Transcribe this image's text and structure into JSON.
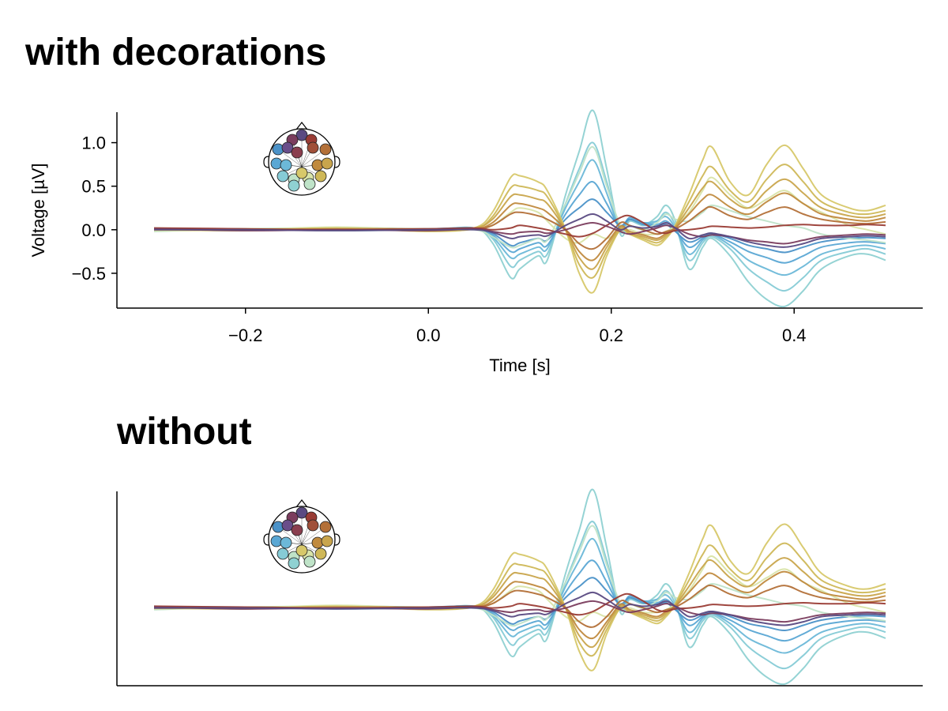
{
  "chart_data": [
    {
      "type": "line",
      "title": "with decorations",
      "xlabel": "Time [s]",
      "ylabel": "Voltage [µV]",
      "xlim": [
        -0.3,
        0.5
      ],
      "ylim": [
        -0.9,
        1.35
      ],
      "xticks": [
        -0.2,
        0.0,
        0.2,
        0.4
      ],
      "xtick_labels": [
        "−0.2",
        "0.0",
        "0.2",
        "0.4"
      ],
      "yticks": [
        -0.5,
        0.0,
        0.5,
        1.0
      ],
      "ytick_labels": [
        "−0.5",
        "0.0",
        "0.5",
        "1.0"
      ],
      "show_axis_decorations": true,
      "inset": "topographic head map of electrode positions colored by channel",
      "x_sample_times": [
        -0.3,
        -0.2,
        -0.1,
        0.0,
        0.05,
        0.07,
        0.09,
        0.1,
        0.12,
        0.13,
        0.15,
        0.165,
        0.18,
        0.195,
        0.21,
        0.22,
        0.235,
        0.25,
        0.26,
        0.27,
        0.285,
        0.3,
        0.31,
        0.33,
        0.35,
        0.37,
        0.39,
        0.41,
        0.43,
        0.46,
        0.48,
        0.5
      ],
      "series": [
        {
          "color": "#8fd1d2",
          "values": [
            0.02,
            0.0,
            0.01,
            0.0,
            0.02,
            -0.15,
            -0.55,
            -0.45,
            -0.3,
            -0.35,
            0.4,
            0.9,
            1.37,
            0.7,
            -0.05,
            0.1,
            0.05,
            0.15,
            0.28,
            0.1,
            -0.45,
            -0.2,
            -0.1,
            -0.3,
            -0.6,
            -0.8,
            -0.88,
            -0.7,
            -0.45,
            -0.3,
            -0.28,
            -0.35
          ]
        },
        {
          "color": "#86cbd6",
          "values": [
            0.0,
            0.01,
            -0.01,
            0.0,
            0.01,
            -0.1,
            -0.42,
            -0.35,
            -0.25,
            -0.28,
            0.3,
            0.7,
            1.0,
            0.55,
            -0.02,
            0.1,
            0.05,
            0.1,
            0.2,
            0.05,
            -0.35,
            -0.15,
            -0.08,
            -0.22,
            -0.45,
            -0.6,
            -0.7,
            -0.55,
            -0.35,
            -0.25,
            -0.22,
            -0.28
          ]
        },
        {
          "color": "#6cb8d8",
          "values": [
            0.01,
            -0.01,
            0.02,
            0.01,
            0.02,
            -0.08,
            -0.32,
            -0.28,
            -0.2,
            -0.22,
            0.25,
            0.55,
            0.8,
            0.42,
            0.0,
            0.12,
            0.08,
            0.1,
            0.15,
            0.02,
            -0.28,
            -0.12,
            -0.06,
            -0.18,
            -0.35,
            -0.45,
            -0.52,
            -0.42,
            -0.28,
            -0.2,
            -0.18,
            -0.22
          ]
        },
        {
          "color": "#5aa7d4",
          "values": [
            0.0,
            0.0,
            0.0,
            0.0,
            0.01,
            -0.06,
            -0.25,
            -0.22,
            -0.15,
            -0.18,
            0.18,
            0.4,
            0.55,
            0.3,
            0.02,
            0.14,
            0.08,
            0.06,
            0.1,
            0.0,
            -0.2,
            -0.1,
            -0.05,
            -0.14,
            -0.25,
            -0.32,
            -0.38,
            -0.3,
            -0.2,
            -0.15,
            -0.14,
            -0.16
          ]
        },
        {
          "color": "#4b92c8",
          "values": [
            0.01,
            0.01,
            0.0,
            0.01,
            0.02,
            -0.04,
            -0.18,
            -0.15,
            -0.1,
            -0.12,
            0.12,
            0.25,
            0.35,
            0.2,
            0.05,
            0.12,
            0.06,
            0.04,
            0.06,
            -0.02,
            -0.14,
            -0.08,
            -0.04,
            -0.1,
            -0.18,
            -0.22,
            -0.26,
            -0.2,
            -0.14,
            -0.1,
            -0.09,
            -0.1
          ]
        },
        {
          "color": "#bfe3c8",
          "values": [
            -0.02,
            0.01,
            0.02,
            -0.01,
            0.0,
            -0.08,
            -0.2,
            -0.18,
            -0.1,
            -0.12,
            0.3,
            0.65,
            0.95,
            0.5,
            0.05,
            0.05,
            0.0,
            0.08,
            0.18,
            0.12,
            0.1,
            0.2,
            0.28,
            0.22,
            0.15,
            0.1,
            0.05,
            0.02,
            -0.05,
            -0.1,
            -0.12,
            -0.15
          ]
        },
        {
          "color": "#d9e4a8",
          "values": [
            -0.01,
            0.0,
            0.03,
            0.0,
            0.01,
            0.05,
            0.2,
            0.25,
            0.2,
            0.1,
            -0.1,
            -0.15,
            -0.05,
            -0.1,
            -0.02,
            0.0,
            -0.05,
            -0.05,
            -0.02,
            0.05,
            0.2,
            0.45,
            0.6,
            0.4,
            0.25,
            0.35,
            0.45,
            0.3,
            0.2,
            0.05,
            0.0,
            -0.05
          ]
        },
        {
          "color": "#d7c86a",
          "values": [
            0.0,
            -0.01,
            0.02,
            -0.02,
            0.02,
            0.2,
            0.6,
            0.62,
            0.55,
            0.45,
            0.0,
            -0.5,
            -0.72,
            -0.3,
            0.0,
            -0.05,
            -0.12,
            -0.18,
            -0.1,
            0.05,
            0.4,
            0.8,
            0.95,
            0.55,
            0.4,
            0.75,
            0.97,
            0.7,
            0.4,
            0.25,
            0.22,
            0.28
          ]
        },
        {
          "color": "#cfb858",
          "values": [
            0.01,
            0.0,
            0.01,
            -0.01,
            0.01,
            0.15,
            0.48,
            0.5,
            0.45,
            0.38,
            0.0,
            -0.4,
            -0.55,
            -0.25,
            0.0,
            -0.05,
            -0.1,
            -0.15,
            -0.08,
            0.04,
            0.32,
            0.62,
            0.72,
            0.45,
            0.32,
            0.58,
            0.75,
            0.55,
            0.32,
            0.2,
            0.18,
            0.22
          ]
        },
        {
          "color": "#c9a54c",
          "values": [
            0.0,
            0.01,
            0.0,
            0.0,
            0.02,
            0.12,
            0.38,
            0.4,
            0.35,
            0.3,
            0.0,
            -0.32,
            -0.45,
            -0.2,
            0.02,
            -0.04,
            -0.08,
            -0.12,
            -0.06,
            0.03,
            0.25,
            0.48,
            0.55,
            0.35,
            0.25,
            0.45,
            0.58,
            0.42,
            0.25,
            0.16,
            0.14,
            0.18
          ]
        },
        {
          "color": "#c08a3e",
          "values": [
            0.01,
            0.0,
            0.01,
            0.01,
            0.01,
            0.08,
            0.28,
            0.3,
            0.25,
            0.2,
            0.0,
            -0.25,
            -0.35,
            -0.16,
            0.04,
            -0.02,
            -0.06,
            -0.1,
            -0.04,
            0.02,
            0.18,
            0.35,
            0.4,
            0.26,
            0.18,
            0.32,
            0.42,
            0.3,
            0.18,
            0.12,
            0.1,
            0.14
          ]
        },
        {
          "color": "#b37038",
          "values": [
            0.0,
            0.0,
            0.0,
            0.0,
            0.01,
            0.05,
            0.18,
            0.2,
            0.16,
            0.12,
            0.0,
            -0.16,
            -0.22,
            -0.1,
            0.08,
            0.05,
            0.0,
            -0.05,
            -0.02,
            0.01,
            0.1,
            0.22,
            0.26,
            0.16,
            0.12,
            0.2,
            0.26,
            0.18,
            0.12,
            0.08,
            0.07,
            0.09
          ]
        },
        {
          "color": "#9a3c35",
          "values": [
            0.02,
            0.01,
            0.0,
            0.01,
            0.02,
            0.0,
            0.02,
            0.05,
            0.02,
            0.0,
            -0.05,
            -0.08,
            -0.04,
            0.05,
            0.14,
            0.16,
            0.08,
            -0.02,
            -0.04,
            -0.01,
            0.0,
            0.02,
            0.04,
            0.03,
            0.02,
            0.03,
            0.05,
            0.06,
            0.05,
            0.05,
            0.06,
            0.05
          ]
        },
        {
          "color": "#7b3d5e",
          "values": [
            0.01,
            -0.01,
            0.0,
            -0.01,
            0.01,
            -0.02,
            -0.05,
            -0.03,
            -0.02,
            -0.04,
            0.0,
            0.05,
            0.08,
            0.04,
            -0.02,
            -0.05,
            -0.02,
            0.02,
            0.05,
            0.02,
            -0.05,
            -0.08,
            -0.06,
            -0.08,
            -0.12,
            -0.14,
            -0.16,
            -0.12,
            -0.08,
            -0.06,
            -0.05,
            -0.06
          ]
        },
        {
          "color": "#5a4a82",
          "values": [
            0.0,
            0.0,
            -0.01,
            0.0,
            0.0,
            -0.03,
            -0.1,
            -0.08,
            -0.06,
            -0.07,
            0.05,
            0.12,
            0.18,
            0.1,
            0.0,
            0.04,
            0.02,
            0.04,
            0.08,
            0.02,
            -0.1,
            -0.06,
            -0.04,
            -0.08,
            -0.14,
            -0.18,
            -0.2,
            -0.16,
            -0.1,
            -0.08,
            -0.07,
            -0.08
          ]
        }
      ]
    },
    {
      "type": "line",
      "title": "without",
      "xlabel": "",
      "ylabel": "",
      "xlim": [
        -0.3,
        0.5
      ],
      "ylim": [
        -0.9,
        1.35
      ],
      "show_axis_decorations": false,
      "inset": "topographic head map of electrode positions colored by channel",
      "same_data_as_panel": 0
    }
  ],
  "topo_electrodes": [
    {
      "color": "#5a4a82"
    },
    {
      "color": "#7b3d5e"
    },
    {
      "color": "#9a3c35"
    },
    {
      "color": "#4b92c8"
    },
    {
      "color": "#6a4e8a"
    },
    {
      "color": "#8a3e4e"
    },
    {
      "color": "#a0503a"
    },
    {
      "color": "#b37038"
    },
    {
      "color": "#5aa7d4"
    },
    {
      "color": "#6cb8d8"
    },
    {
      "color": "#c08a3e"
    },
    {
      "color": "#c9a54c"
    },
    {
      "color": "#86cbd6"
    },
    {
      "color": "#bfe3c8"
    },
    {
      "color": "#d9e4a8"
    },
    {
      "color": "#cfb858"
    },
    {
      "color": "#8fd1d2"
    },
    {
      "color": "#bfe3c8"
    },
    {
      "color": "#d7c86a"
    }
  ]
}
